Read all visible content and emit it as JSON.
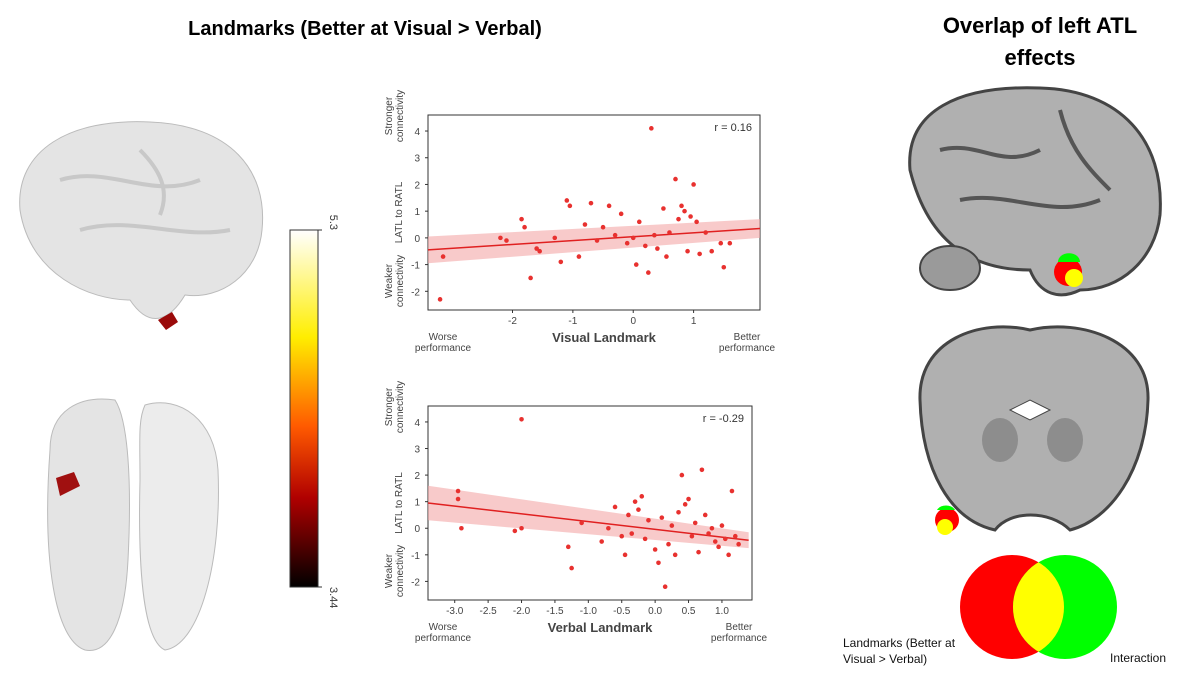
{
  "title": "Landmarks (Better at Visual > Verbal)",
  "overlap_title": "Overlap of left ATL effects",
  "colorbar": {
    "ticks": [
      5.3,
      3.44
    ],
    "lim": [
      3.44,
      5.3
    ]
  },
  "venn": {
    "left_label": "Landmarks (Better at Visual > Verbal)",
    "right_label": "Interaction"
  },
  "chart_data": [
    {
      "type": "scatter",
      "annotation": "r = 0.16",
      "x_label": "Visual Landmark",
      "y_label": "LATL to RATL",
      "x_low_label": "Worse performance",
      "x_high_label": "Better performance",
      "y_high_label": "Stronger connectivity",
      "y_low_label": "Weaker connectivity",
      "color": "#e8312f",
      "x": [
        -3.2,
        -3.15,
        -2.2,
        -2.1,
        -1.85,
        -1.8,
        -1.7,
        -1.6,
        -1.55,
        -1.3,
        -1.2,
        -1.1,
        -1.05,
        -0.9,
        -0.8,
        -0.7,
        -0.6,
        -0.5,
        -0.4,
        -0.3,
        -0.2,
        -0.1,
        0,
        0.05,
        0.1,
        0.2,
        0.25,
        0.3,
        0.35,
        0.4,
        0.5,
        0.55,
        0.6,
        0.7,
        0.75,
        0.8,
        0.85,
        0.9,
        0.95,
        1.0,
        1.05,
        1.1,
        1.2,
        1.3,
        1.45,
        1.5,
        1.6
      ],
      "values": [
        -2.3,
        -0.7,
        0,
        -0.1,
        0.7,
        0.4,
        -1.5,
        -0.4,
        -0.5,
        0,
        -0.9,
        1.4,
        1.2,
        -0.7,
        0.5,
        1.3,
        -0.1,
        0.4,
        1.2,
        0.1,
        0.9,
        -0.2,
        0,
        -1.0,
        0.6,
        -0.3,
        -1.3,
        4.1,
        0.1,
        -0.4,
        1.1,
        -0.7,
        0.2,
        2.2,
        0.7,
        1.2,
        1.0,
        -0.5,
        0.8,
        2.0,
        0.6,
        -0.6,
        0.2,
        -0.5,
        -0.2,
        -1.1,
        -0.2
      ],
      "fit": {
        "x": [
          -3.4,
          2.1
        ],
        "y": [
          -0.45,
          0.35
        ],
        "lower": [
          -0.95,
          0.0
        ],
        "upper": [
          0.05,
          0.7
        ]
      },
      "xlim": [
        -3.4,
        2.1
      ],
      "ylim": [
        -2.7,
        4.6
      ],
      "xticks": [
        -2,
        -1,
        0,
        1
      ],
      "yticks": [
        -2,
        -1,
        0,
        1,
        2,
        3,
        4
      ]
    },
    {
      "type": "scatter",
      "annotation": "r = -0.29",
      "x_label": "Verbal Landmark",
      "y_label": "LATL to RATL",
      "x_low_label": "Worse performance",
      "x_high_label": "Better performance",
      "y_high_label": "Stronger connectivity",
      "y_low_label": "Weaker connectivity",
      "color": "#e8312f",
      "x": [
        -2.95,
        -2.95,
        -2.9,
        -2.0,
        -2.0,
        -2.1,
        -1.3,
        -1.25,
        -1.1,
        -0.8,
        -0.7,
        -0.6,
        -0.5,
        -0.45,
        -0.4,
        -0.35,
        -0.3,
        -0.25,
        -0.2,
        -0.15,
        -0.1,
        0,
        0.05,
        0.1,
        0.15,
        0.2,
        0.25,
        0.3,
        0.35,
        0.4,
        0.45,
        0.5,
        0.55,
        0.6,
        0.65,
        0.7,
        0.75,
        0.8,
        0.85,
        0.9,
        0.95,
        1.0,
        1.05,
        1.1,
        1.15,
        1.2,
        1.25
      ],
      "values": [
        1.4,
        1.1,
        0,
        4.1,
        0,
        -0.1,
        -0.7,
        -1.5,
        0.2,
        -0.5,
        0,
        0.8,
        -0.3,
        -1.0,
        0.5,
        -0.2,
        1.0,
        0.7,
        1.2,
        -0.4,
        0.3,
        -0.8,
        -1.3,
        0.4,
        -2.2,
        -0.6,
        0.1,
        -1.0,
        0.6,
        2.0,
        0.9,
        1.1,
        -0.3,
        0.2,
        -0.9,
        2.2,
        0.5,
        -0.2,
        0,
        -0.5,
        -0.7,
        0.1,
        -0.4,
        -1.0,
        1.4,
        -0.3,
        -0.6
      ],
      "fit": {
        "x": [
          -3.4,
          1.4
        ],
        "y": [
          0.95,
          -0.45
        ],
        "lower": [
          0.3,
          -0.75
        ],
        "upper": [
          1.6,
          -0.15
        ]
      },
      "xlim": [
        -3.4,
        1.45
      ],
      "ylim": [
        -2.7,
        4.6
      ],
      "xticks": [
        {
          "value": -3.0,
          "label": "-3.0"
        },
        -2.5,
        {
          "value": -2.0,
          "label": "-2.0"
        },
        -1.5,
        {
          "value": -1.0,
          "label": "-1.0"
        },
        -0.5,
        {
          "value": 0.0,
          "label": "0.0"
        },
        0.5,
        {
          "value": 1.0,
          "label": "1.0"
        }
      ],
      "yticks": [
        -2,
        -1,
        0,
        1,
        2,
        3,
        4
      ]
    }
  ]
}
